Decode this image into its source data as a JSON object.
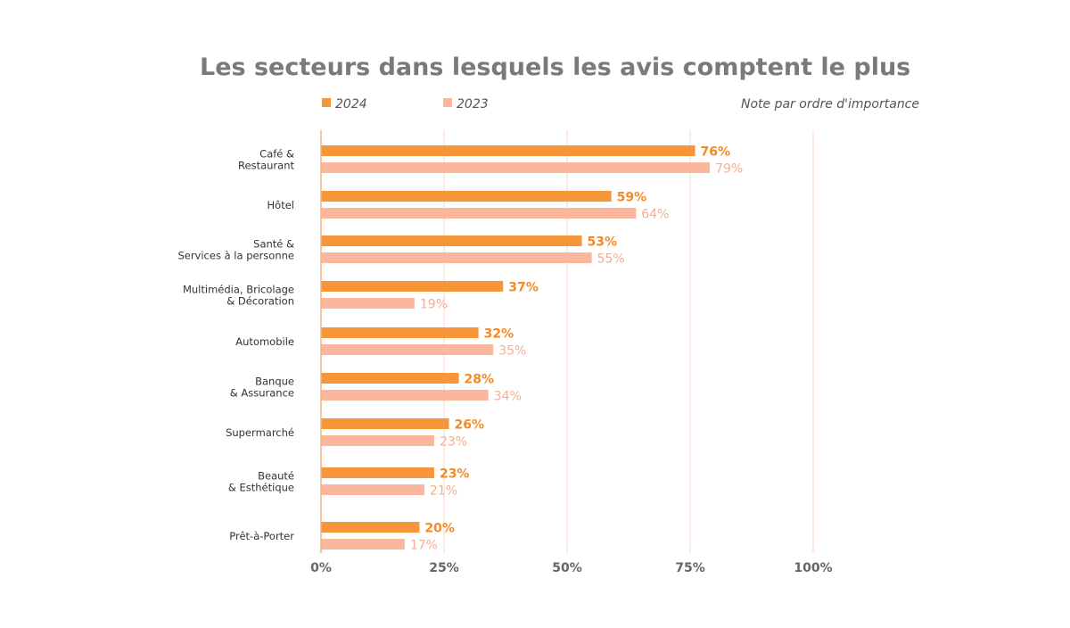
{
  "chart_data": {
    "type": "bar",
    "orientation": "horizontal",
    "title": "Les secteurs dans lesquels les avis comptent le plus",
    "note": "Note par ordre d'importance",
    "categories": [
      [
        "Café &",
        "Restaurant"
      ],
      [
        "Hôtel"
      ],
      [
        "Santé &",
        "Services à la personne"
      ],
      [
        "Multimédia, Bricolage",
        "& Décoration"
      ],
      [
        "Automobile"
      ],
      [
        "Banque",
        "& Assurance"
      ],
      [
        "Supermarché"
      ],
      [
        "Beauté",
        "& Esthétique"
      ],
      [
        "Prêt-à-Porter"
      ]
    ],
    "series": [
      {
        "name": "2024",
        "color": "#f7953a",
        "label_color": "#f28a25",
        "values": [
          76,
          59,
          53,
          37,
          32,
          28,
          26,
          23,
          20
        ],
        "labels": [
          "76%",
          "59%",
          "53%",
          "37%",
          "32%",
          "28%",
          "26%",
          "23%",
          "20%"
        ]
      },
      {
        "name": "2023",
        "color": "#fbb79d",
        "label_color": "#f5ad93",
        "values": [
          79,
          64,
          55,
          19,
          35,
          34,
          23,
          21,
          17
        ],
        "labels": [
          "79%",
          "64%",
          "55%",
          "19%",
          "35%",
          "34%",
          "23%",
          "21%",
          "17%"
        ]
      }
    ],
    "xlim": [
      0,
      100
    ],
    "x_ticks": [
      {
        "value": 0,
        "label": "0%"
      },
      {
        "value": 25,
        "label": "25%"
      },
      {
        "value": 50,
        "label": "50%"
      },
      {
        "value": 75,
        "label": "75%"
      },
      {
        "value": 100,
        "label": "100%"
      }
    ],
    "grid": true,
    "legend_position": "top-left"
  }
}
